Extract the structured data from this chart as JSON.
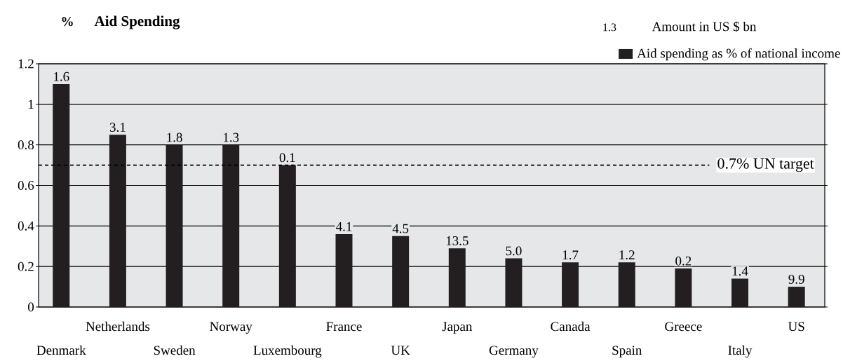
{
  "chart_data": {
    "type": "bar",
    "title": "Aid Spending",
    "ylabel": "%",
    "categories": [
      "Denmark",
      "Netherlands",
      "Sweden",
      "Norway",
      "Luxembourg",
      "France",
      "UK",
      "Japan",
      "Germany",
      "Canada",
      "Spain",
      "Greece",
      "Italy",
      "US"
    ],
    "series": [
      {
        "name": "Aid spending as % of national income",
        "color": "#231f20",
        "values": [
          1.1,
          0.85,
          0.8,
          0.8,
          0.7,
          0.36,
          0.35,
          0.29,
          0.24,
          0.22,
          0.22,
          0.19,
          0.14,
          0.1
        ]
      }
    ],
    "ylim": [
      0,
      1.2
    ],
    "yticks": [
      0,
      0.2,
      0.4,
      0.6,
      0.8,
      1,
      1.2
    ],
    "grid": "y",
    "legend": "top right",
    "ref_lines": [
      {
        "axis": "y",
        "value": 0.7,
        "label": "0.7% UN target",
        "line_style": "dashed"
      }
    ],
    "annotations": [
      "1.3",
      "Amount in US $ bn",
      {
        "text": "1.6",
        "x": "Denmark",
        "y": 1.1
      },
      {
        "text": "3.1",
        "x": "Netherlands",
        "y": 0.85
      },
      {
        "text": "1.8",
        "x": "Sweden",
        "y": 0.8
      },
      {
        "text": "1.3",
        "x": "Norway",
        "y": 0.8
      },
      {
        "text": "0.1",
        "x": "Luxembourg",
        "y": 0.7
      },
      {
        "text": "4.1",
        "x": "France",
        "y": 0.36
      },
      {
        "text": "4.5",
        "x": "UK",
        "y": 0.35
      },
      {
        "text": "13.5",
        "x": "Japan",
        "y": 0.29
      },
      {
        "text": "5.0",
        "x": "Germany",
        "y": 0.24
      },
      {
        "text": "1.7",
        "x": "Canada",
        "y": 0.22
      },
      {
        "text": "1.2",
        "x": "Spain",
        "y": 0.22
      },
      {
        "text": "0.2",
        "x": "Greece",
        "y": 0.19
      },
      {
        "text": "1.4",
        "x": "Italy",
        "y": 0.14
      },
      {
        "text": "9.9",
        "x": "US",
        "y": 0.1
      }
    ]
  }
}
